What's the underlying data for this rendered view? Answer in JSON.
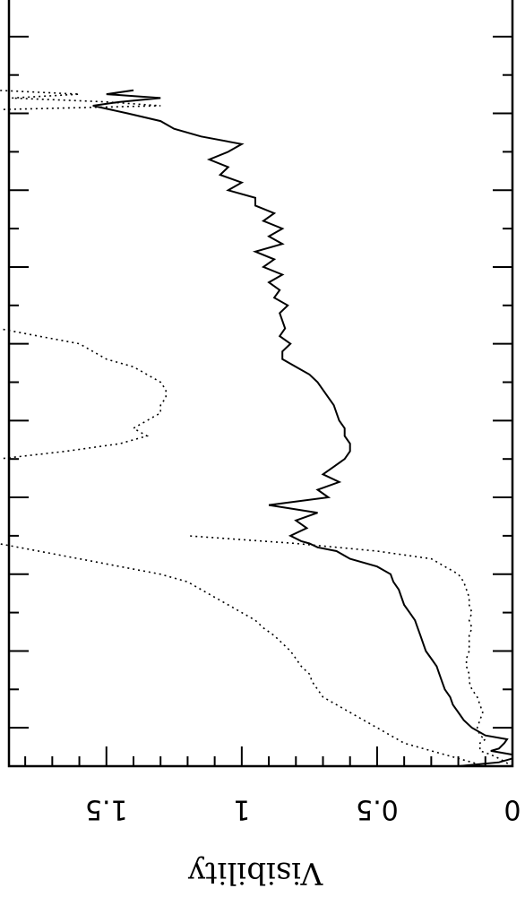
{
  "chart_data": {
    "type": "line",
    "orientation": "rotated-180",
    "ylabel": "Visibility",
    "yticks": [
      {
        "value": 0,
        "label": "0"
      },
      {
        "value": 0.5,
        "label": "0.5"
      },
      {
        "value": 1,
        "label": "1"
      },
      {
        "value": 1.5,
        "label": "1.5"
      }
    ],
    "ylim": [
      0,
      1.86
    ],
    "xlim": [
      0,
      100
    ],
    "x_major_ticks": [
      5,
      15,
      25,
      35,
      45,
      55,
      65,
      75,
      85,
      95
    ],
    "grid": false,
    "series": [
      {
        "style": "solid",
        "x": [
          0,
          0.5,
          1,
          1.5,
          2,
          2.3,
          3,
          3.5,
          4,
          5,
          6,
          7,
          8,
          9,
          10,
          11,
          12,
          13,
          14,
          15,
          16,
          17,
          18,
          19,
          20,
          21,
          22,
          23,
          24,
          25,
          26,
          27,
          28,
          28.5,
          29,
          29.3,
          30,
          31,
          32,
          33,
          34,
          35,
          36,
          37,
          38,
          39,
          40,
          41,
          42,
          43,
          44,
          45,
          46,
          47,
          48,
          49,
          50,
          51,
          52,
          53,
          54,
          55,
          56,
          57,
          58,
          59,
          60,
          61,
          62,
          63,
          64,
          65,
          66,
          67,
          68,
          69,
          70,
          71,
          72,
          73,
          74,
          75,
          76,
          77,
          78,
          79,
          80,
          81,
          82,
          83,
          84,
          85,
          86,
          86.5,
          87,
          87.5,
          88
        ],
        "values": [
          0.2,
          0.05,
          0.0,
          0.0,
          0.08,
          0.05,
          0.03,
          0.02,
          0.1,
          0.15,
          0.18,
          0.2,
          0.22,
          0.23,
          0.25,
          0.26,
          0.27,
          0.28,
          0.3,
          0.32,
          0.33,
          0.34,
          0.35,
          0.36,
          0.38,
          0.4,
          0.41,
          0.42,
          0.44,
          0.45,
          0.5,
          0.6,
          0.65,
          0.72,
          0.75,
          0.78,
          0.82,
          0.76,
          0.8,
          0.72,
          0.9,
          0.68,
          0.72,
          0.64,
          0.7,
          0.66,
          0.62,
          0.6,
          0.6,
          0.62,
          0.62,
          0.64,
          0.65,
          0.66,
          0.68,
          0.7,
          0.72,
          0.75,
          0.8,
          0.85,
          0.85,
          0.82,
          0.86,
          0.84,
          0.85,
          0.86,
          0.83,
          0.88,
          0.86,
          0.9,
          0.85,
          0.92,
          0.88,
          0.95,
          0.85,
          0.9,
          0.85,
          0.92,
          0.88,
          0.95,
          0.95,
          1.05,
          1.0,
          1.08,
          1.05,
          1.12,
          1.05,
          1.0,
          1.15,
          1.25,
          1.3,
          1.42,
          1.55,
          1.45,
          1.3,
          1.5,
          1.4
        ]
      },
      {
        "style": "dotted",
        "x": [
          0,
          1,
          1.5,
          2,
          3,
          3.5,
          4,
          5,
          6,
          7,
          8,
          9,
          10,
          11,
          12,
          13,
          14,
          15,
          16,
          17,
          18,
          19,
          20,
          21,
          22,
          23,
          24,
          25,
          26,
          27,
          28,
          29,
          30
        ],
        "values": [
          0.0,
          0.05,
          0.08,
          0.12,
          0.12,
          0.1,
          0.12,
          0.13,
          0.12,
          0.11,
          0.12,
          0.13,
          0.15,
          0.16,
          0.16,
          0.17,
          0.17,
          0.16,
          0.16,
          0.16,
          0.15,
          0.16,
          0.15,
          0.16,
          0.16,
          0.17,
          0.18,
          0.2,
          0.25,
          0.3,
          0.5,
          0.8,
          1.2
        ]
      },
      {
        "style": "dotted",
        "x": [
          0,
          1,
          2,
          3,
          4,
          5,
          6,
          7,
          8,
          9,
          10,
          11,
          12,
          13,
          14,
          15,
          16,
          17,
          18,
          19,
          20,
          21,
          22,
          23,
          24,
          25,
          26,
          27,
          28,
          29,
          30
        ],
        "values": [
          0.1,
          0.2,
          0.3,
          0.4,
          0.45,
          0.5,
          0.55,
          0.6,
          0.65,
          0.7,
          0.72,
          0.74,
          0.75,
          0.78,
          0.8,
          0.82,
          0.85,
          0.88,
          0.92,
          0.95,
          1.0,
          1.05,
          1.1,
          1.15,
          1.2,
          1.3,
          1.45,
          1.6,
          1.75,
          1.9,
          2.0
        ]
      },
      {
        "style": "dotted",
        "x": [
          40,
          41,
          42,
          43,
          44,
          45,
          46,
          47,
          48,
          49,
          50,
          51,
          52,
          53,
          54,
          55,
          56,
          57
        ],
        "values": [
          1.9,
          1.65,
          1.45,
          1.35,
          1.4,
          1.35,
          1.3,
          1.3,
          1.28,
          1.28,
          1.3,
          1.35,
          1.4,
          1.5,
          1.55,
          1.6,
          1.75,
          1.9
        ]
      },
      {
        "style": "dotted",
        "x": [
          85.5,
          86,
          86.5,
          87,
          87.5,
          88
        ],
        "values": [
          1.9,
          1.3,
          1.5,
          1.85,
          1.6,
          1.9
        ]
      }
    ]
  }
}
